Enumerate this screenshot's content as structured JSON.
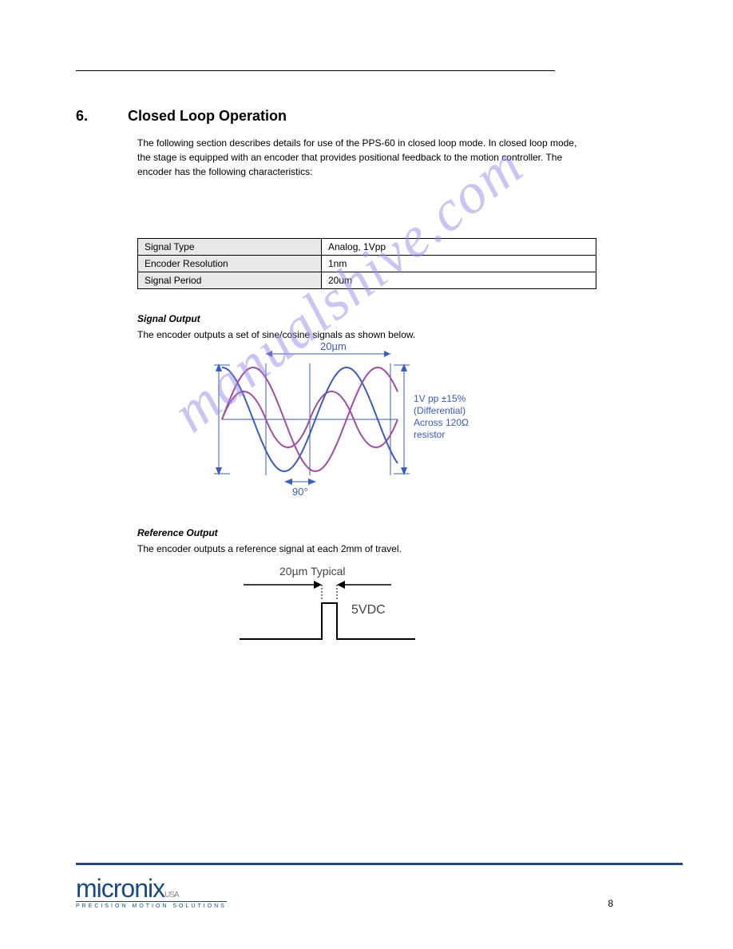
{
  "header": {
    "right_text": ""
  },
  "section": {
    "number": "6.",
    "title": "Closed Loop Operation",
    "intro": "The following section describes details for use of the PPS-60 in closed loop mode. In closed loop mode, the stage is equipped with an encoder that provides positional feedback to the motion controller. The encoder has the following characteristics:"
  },
  "table": {
    "rows": [
      {
        "label": "Signal Type",
        "value": "Analog, 1Vpp"
      },
      {
        "label": "Encoder Resolution",
        "value": "1nm"
      },
      {
        "label": "Signal Period",
        "value": "20um"
      }
    ]
  },
  "signal_heading": "Signal Output",
  "signal_caption": "The encoder outputs a set of sine/cosine signals as shown below.",
  "sine_chart": {
    "period_label": "20µm",
    "phase_label": "90°",
    "annotation_lines": [
      "1V pp ±15%",
      "(Differential)",
      "Across 120Ω",
      "resistor"
    ],
    "sin_color": "#3b5bbf",
    "cos_color": "#a04d9e",
    "guide_color": "#3b5bbf",
    "text_color": "#3b5bbf"
  },
  "reference_heading": "Reference Output",
  "reference_caption": "The encoder outputs a reference signal at each 2mm of travel.",
  "index_chart": {
    "period_label": "20µm Typical",
    "voltage_label": "5VDC",
    "line_color": "#000000",
    "text_color": "#444444"
  },
  "footer": {
    "page_number": "8",
    "logo_main": "micronix",
    "logo_suffix": "USA",
    "logo_tagline": "PRECISION MOTION SOLUTIONS"
  },
  "watermark": "manualshive.com"
}
